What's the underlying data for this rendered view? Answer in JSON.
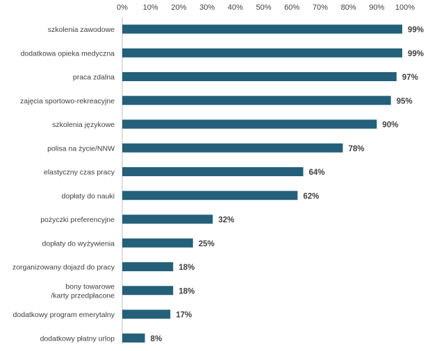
{
  "chart_data": {
    "type": "bar",
    "orientation": "horizontal",
    "categories": [
      "szkolenia zawodowe",
      "dodatkowa opieka medyczna",
      "praca zdalna",
      "zajęcia sportowo-rekreacyjne",
      "szkolenia językowe",
      "polisa na życie/NNW",
      "elastyczny czas pracy",
      "dopłaty do nauki",
      "pożyczki preferencyjne",
      "dopłaty do wyżywienia",
      "zorganizowany dojazd do pracy",
      "bony towarowe\n/karty przedpłacone",
      "dodatkowy program emerytalny",
      "dodatkowy płatny urlop"
    ],
    "values": [
      99,
      99,
      97,
      95,
      90,
      78,
      64,
      62,
      32,
      25,
      18,
      18,
      17,
      8
    ],
    "value_labels": [
      "99%",
      "99%",
      "97%",
      "95%",
      "90%",
      "78%",
      "64%",
      "62%",
      "32%",
      "25%",
      "18%",
      "18%",
      "17%",
      "8%"
    ],
    "x_ticks": [
      "0%",
      "10%",
      "20%",
      "30%",
      "40%",
      "50%",
      "60%",
      "70%",
      "80%",
      "90%",
      "100%"
    ],
    "xlim": [
      0,
      100
    ],
    "x_axis_position": "top",
    "grid": false,
    "legend": "none",
    "bar_color": "#24607a",
    "title": "",
    "xlabel": "",
    "ylabel": ""
  }
}
